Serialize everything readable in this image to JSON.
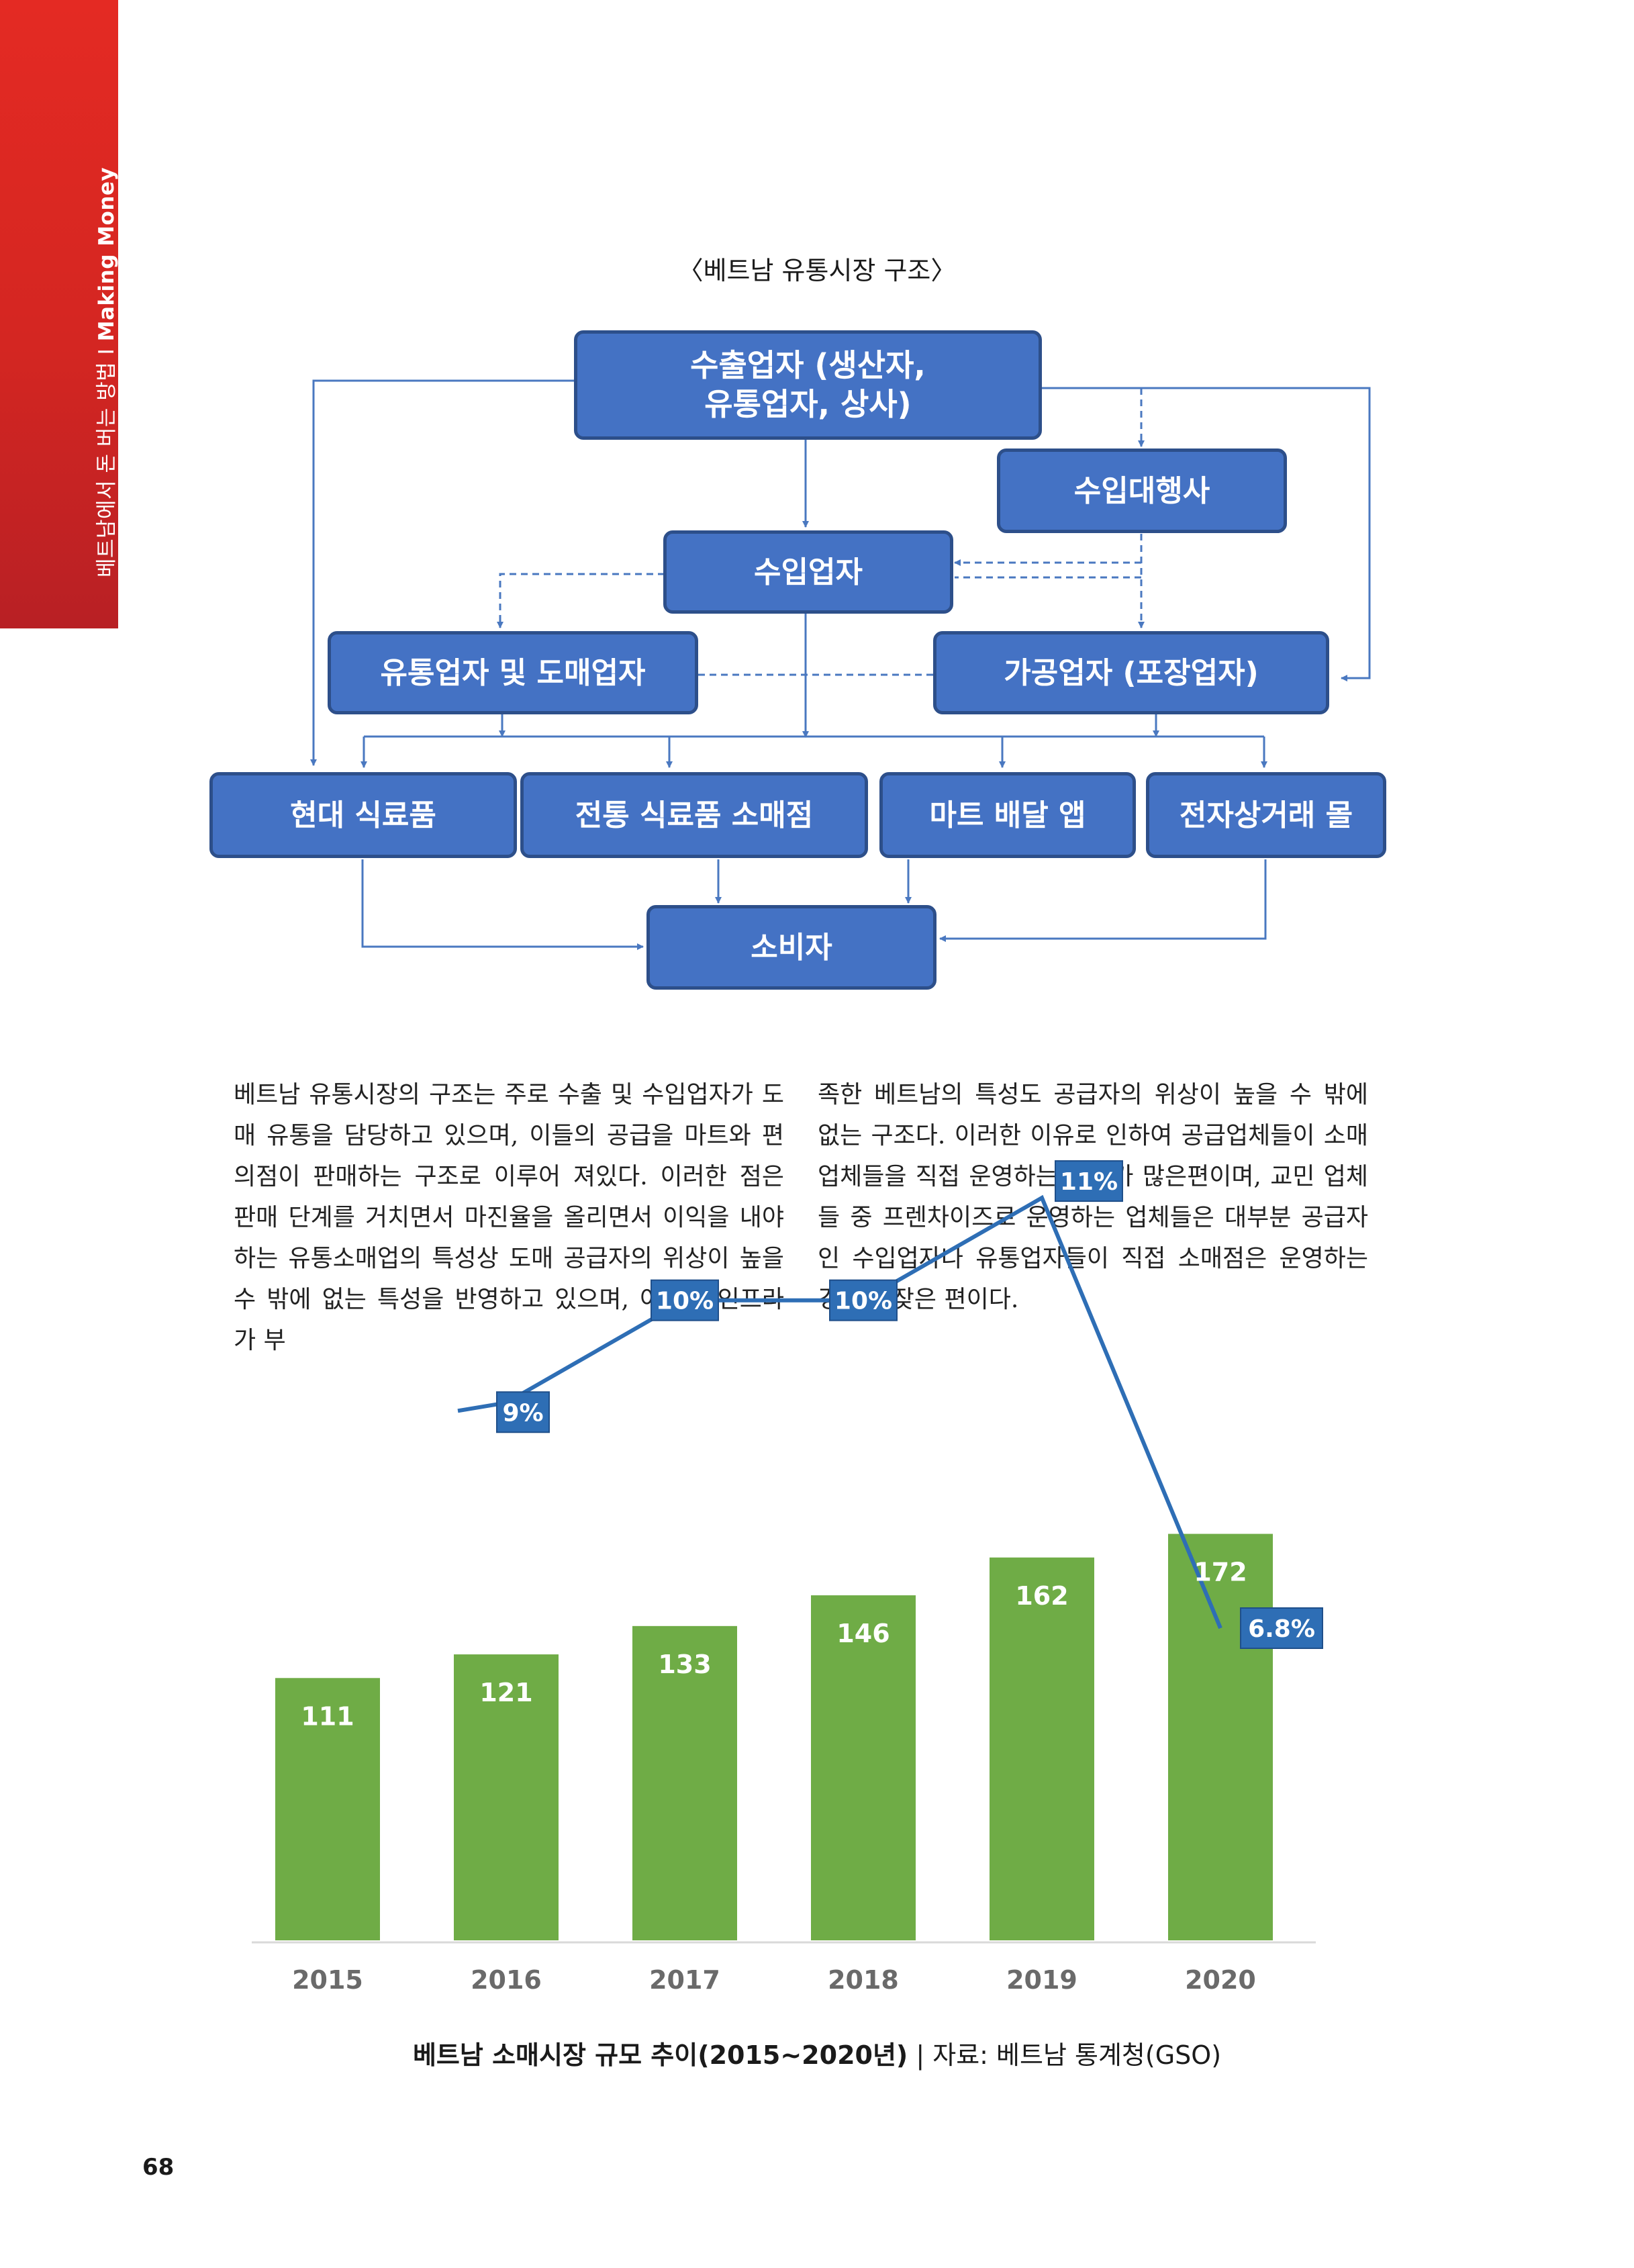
{
  "sidebar": {
    "text_korean": "베트남에서 돈 버는 방법",
    "separator": " I ",
    "text_english": "Making Money"
  },
  "diagram": {
    "title": "〈베트남 유통시장 구조〉",
    "nodes": {
      "exporter_line1": "수출업자 (생산자,",
      "exporter_line2": "유통업자, 상사)",
      "import_agent": "수입대행사",
      "importer": "수입업자",
      "distributor": "유통업자 및 도매업자",
      "processor": "가공업자 (포장업자)",
      "modern_grocery": "현대 식료품",
      "traditional_grocery": "전통 식료품 소매점",
      "mart_delivery": "마트 배달 앱",
      "ecommerce": "전자상거래 몰",
      "consumer": "소비자"
    }
  },
  "body": {
    "left_column": "베트남 유통시장의 구조는 주로 수출 및 수입업자가 도매 유통을 담당하고 있으며, 이들의 공급을 마트와 편의점이 판매하는 구조로 이루어 져있다. 이러한 점은 판매 단계를 거치면서 마진율을 올리면서 이익을 내야하는 유통소매업의 특성상 도매 공급자의 위상이 높을 수 밖에 없는 특성을 반영하고 있으며, 아울러 인프라가 부",
    "right_column": "족한 베트남의 특성도 공급자의 위상이 높을 수 밖에 없는 구조다. 이러한 이유로 인하여 공급업체들이 소매업체들을 직접 운영하는 경우가 많은편이며, 교민 업체들 중 프렌차이즈로 운영하는 업체들은 대부분 공급자인 수입업자나 유통업자들이 직접 소매점은 운영하는 경우가 잦은 편이다."
  },
  "chart_data": {
    "type": "bar",
    "categories": [
      "2015",
      "2016",
      "2017",
      "2018",
      "2019",
      "2020"
    ],
    "series": [
      {
        "values": [
          111,
          121,
          133,
          146,
          162,
          172
        ],
        "color": "#6fac46"
      },
      {
        "type": "line",
        "values": [
          null,
          9,
          10,
          10,
          11,
          6.8
        ],
        "labels": [
          "",
          "9%",
          "10%",
          "10%",
          "11%",
          "6.8%"
        ],
        "color": "#2e6eb5"
      }
    ],
    "ylim": [
      0,
      190
    ],
    "grid": false,
    "legend": "none",
    "bar_labels": [
      "111",
      "121",
      "133",
      "146",
      "162",
      "172"
    ],
    "caption_main": "베트남 소매시장 규모 추이(2015~2020년)",
    "caption_source": "자료: 베트남 통계청(GSO)"
  },
  "colors": {
    "accent_red": "#e42a23",
    "box_blue": "#4472c4",
    "box_border": "#2d4f8a",
    "bar_green": "#6fac46",
    "line_blue": "#2e6eb5"
  },
  "page_number": "68"
}
